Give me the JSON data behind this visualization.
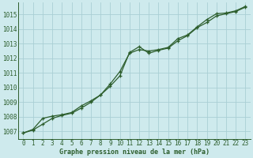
{
  "title": "Graphe pression niveau de la mer (hPa)",
  "bg_color": "#ceeaed",
  "grid_color": "#aacfd4",
  "line_color": "#2d5e2d",
  "xlim": [
    -0.5,
    23.5
  ],
  "ylim": [
    1006.5,
    1015.8
  ],
  "yticks": [
    1007,
    1008,
    1009,
    1010,
    1011,
    1012,
    1013,
    1014,
    1015
  ],
  "xticks": [
    0,
    1,
    2,
    3,
    4,
    5,
    6,
    7,
    8,
    9,
    10,
    11,
    12,
    13,
    14,
    15,
    16,
    17,
    18,
    19,
    20,
    21,
    22,
    23
  ],
  "line1_x": [
    0,
    1,
    2,
    3,
    4,
    5,
    6,
    7,
    8,
    9,
    10,
    11,
    12,
    13,
    14,
    15,
    16,
    17,
    18,
    19,
    20,
    21,
    22,
    23
  ],
  "line1_y": [
    1006.9,
    1007.1,
    1007.5,
    1007.9,
    1008.1,
    1008.25,
    1008.6,
    1009.0,
    1009.5,
    1010.1,
    1010.8,
    1012.4,
    1012.8,
    1012.35,
    1012.55,
    1012.7,
    1013.2,
    1013.55,
    1014.1,
    1014.45,
    1014.9,
    1015.05,
    1015.2,
    1015.5
  ],
  "line2_x": [
    0,
    1,
    2,
    3,
    4,
    5,
    6,
    7,
    8,
    9,
    10,
    11,
    12,
    13,
    14,
    15,
    16,
    17,
    18,
    19,
    20,
    21,
    22,
    23
  ],
  "line2_y": [
    1006.9,
    1007.15,
    1007.9,
    1008.05,
    1008.15,
    1008.3,
    1008.75,
    1009.1,
    1009.5,
    1010.25,
    1011.1,
    1012.35,
    1012.6,
    1012.5,
    1012.6,
    1012.75,
    1013.35,
    1013.6,
    1014.15,
    1014.65,
    1015.05,
    1015.1,
    1015.25,
    1015.55
  ],
  "tick_fontsize": 5.5,
  "title_fontsize": 6.0,
  "linewidth": 0.9,
  "markersize": 3.5
}
